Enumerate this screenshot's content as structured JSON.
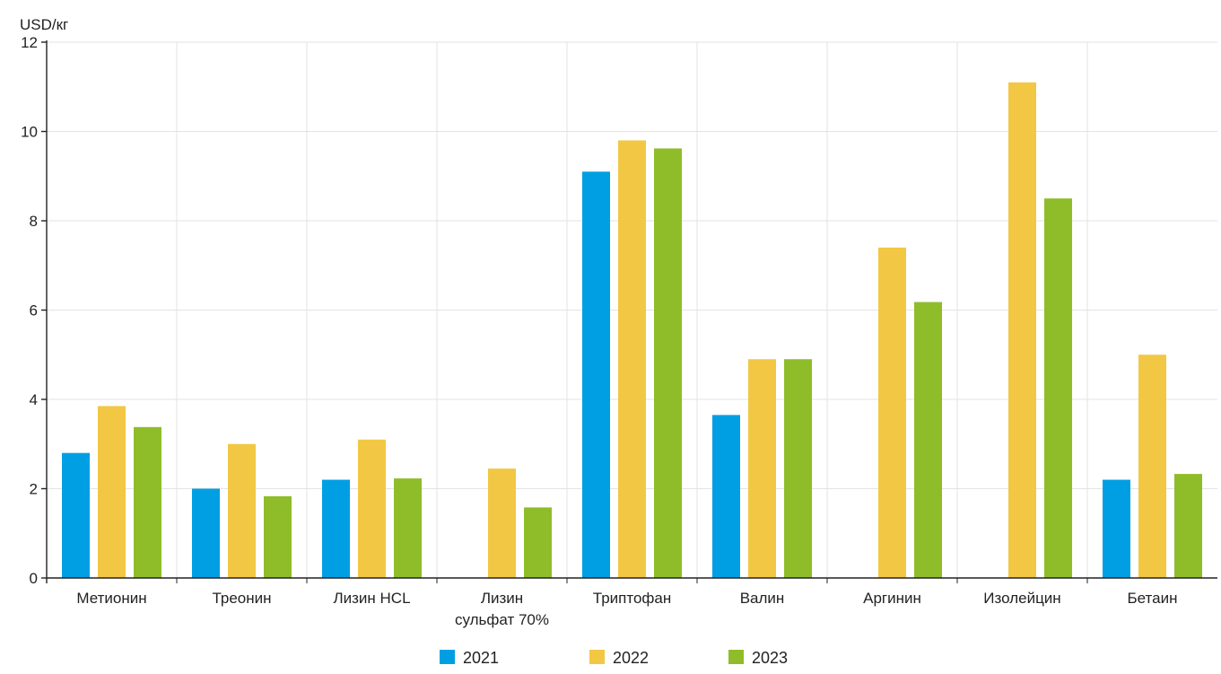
{
  "chart_data": {
    "type": "bar",
    "title": "",
    "ylabel": "USD/кг",
    "xlabel": "",
    "ylim": [
      0,
      12
    ],
    "yticks": [
      0,
      2,
      4,
      6,
      8,
      10,
      12
    ],
    "grid": true,
    "legend_position": "bottom-center",
    "categories": [
      [
        "Метионин"
      ],
      [
        "Треонин"
      ],
      [
        "Лизин HCL"
      ],
      [
        "Лизин",
        "сульфат 70%"
      ],
      [
        "Триптофан"
      ],
      [
        "Валин"
      ],
      [
        "Аргинин"
      ],
      [
        "Изолейцин"
      ],
      [
        "Бетаин"
      ]
    ],
    "series": [
      {
        "name": "2021",
        "color": "#009fe3",
        "values": [
          2.8,
          2.0,
          2.2,
          null,
          9.1,
          3.65,
          null,
          null,
          2.2
        ]
      },
      {
        "name": "2022",
        "color": "#f2c744",
        "values": [
          3.85,
          3.0,
          3.1,
          2.45,
          9.8,
          4.9,
          7.4,
          11.1,
          5.0
        ]
      },
      {
        "name": "2023",
        "color": "#8fbd2a",
        "values": [
          3.38,
          1.83,
          2.23,
          1.58,
          9.62,
          4.9,
          6.18,
          8.5,
          2.33
        ]
      }
    ]
  }
}
